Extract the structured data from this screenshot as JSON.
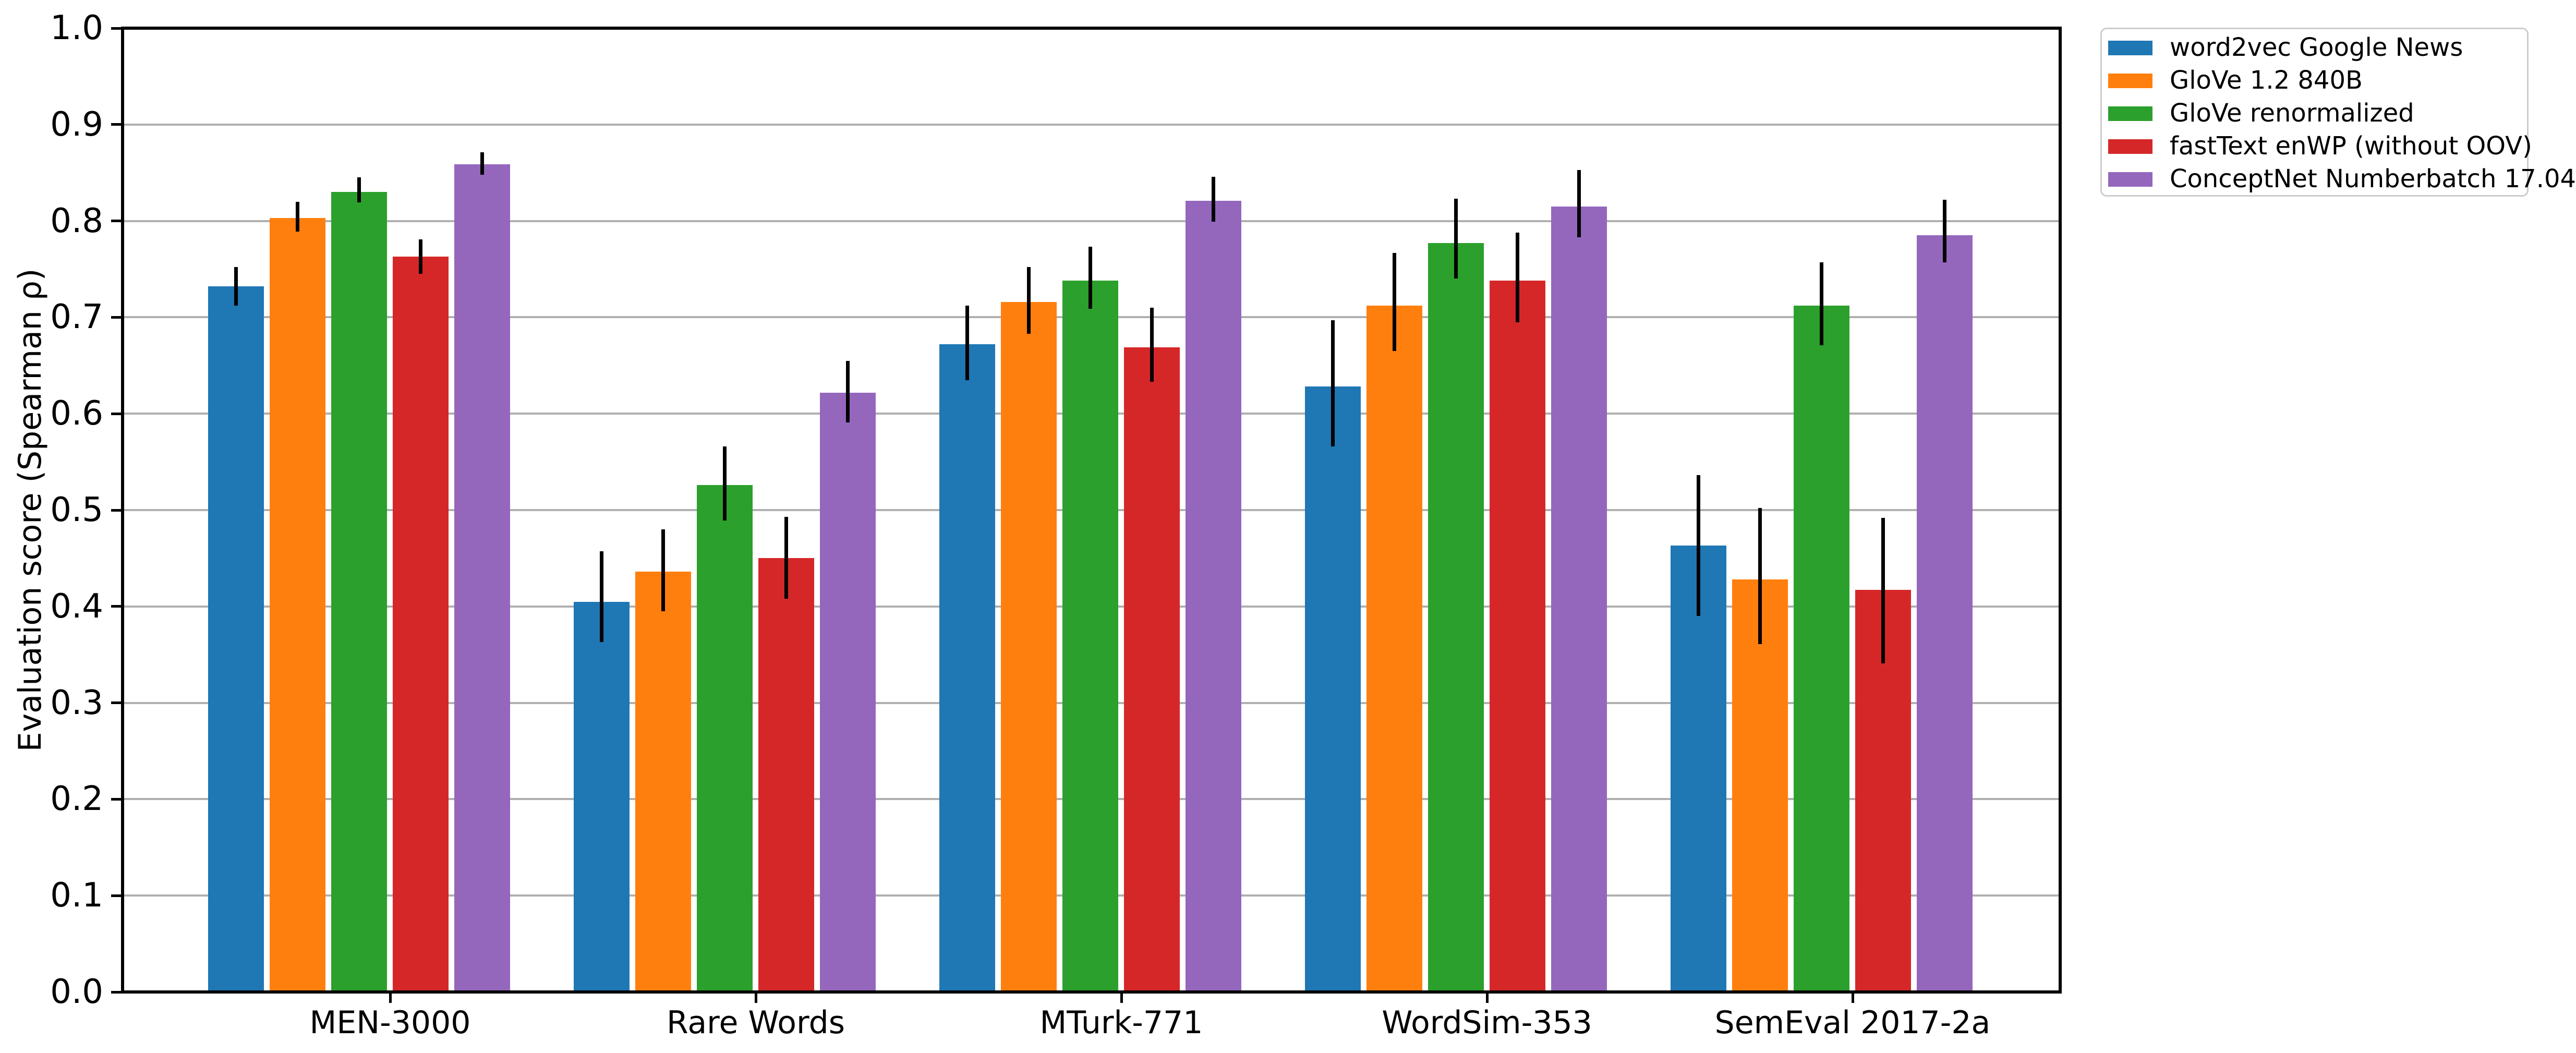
{
  "colors": {
    "background": "#ffffff",
    "gridline": "#b0b0b0",
    "spine": "#000000",
    "errorbar": "#000000",
    "legend_border": "#cccccc",
    "text": "#000000"
  },
  "y_axis": {
    "label": "Evaluation score (Spearman ρ)",
    "tick_labels": [
      "0.0",
      "0.1",
      "0.2",
      "0.3",
      "0.4",
      "0.5",
      "0.6",
      "0.7",
      "0.8",
      "0.9",
      "1.0"
    ]
  },
  "chart_data": {
    "type": "bar",
    "title": "",
    "xlabel": "",
    "ylabel": "Evaluation score (Spearman ρ)",
    "ylim": [
      0.0,
      1.0
    ],
    "ytick_step": 0.1,
    "grid": true,
    "legend_position": "upper right, outside plot",
    "categories": [
      "MEN-3000",
      "Rare Words",
      "MTurk-771",
      "WordSim-353",
      "SemEval 2017-2a"
    ],
    "series": [
      {
        "name": "word2vec Google News",
        "color": "#1f77b4",
        "values": [
          0.732,
          0.405,
          0.672,
          0.628,
          0.463
        ],
        "error_low": [
          0.712,
          0.363,
          0.635,
          0.566,
          0.39
        ],
        "error_high": [
          0.752,
          0.457,
          0.712,
          0.697,
          0.536
        ]
      },
      {
        "name": "GloVe 1.2 840B",
        "color": "#ff7f0e",
        "values": [
          0.803,
          0.436,
          0.716,
          0.712,
          0.428
        ],
        "error_low": [
          0.789,
          0.395,
          0.683,
          0.665,
          0.361
        ],
        "error_high": [
          0.82,
          0.48,
          0.752,
          0.767,
          0.502
        ]
      },
      {
        "name": "GloVe renormalized",
        "color": "#2ca02c",
        "values": [
          0.83,
          0.526,
          0.738,
          0.777,
          0.712
        ],
        "error_low": [
          0.819,
          0.489,
          0.709,
          0.74,
          0.671
        ],
        "error_high": [
          0.845,
          0.566,
          0.773,
          0.823,
          0.757
        ]
      },
      {
        "name": "fastText enWP (without OOV)",
        "color": "#d62728",
        "values": [
          0.763,
          0.45,
          0.669,
          0.738,
          0.417
        ],
        "error_low": [
          0.745,
          0.408,
          0.633,
          0.695,
          0.341
        ],
        "error_high": [
          0.781,
          0.493,
          0.71,
          0.788,
          0.492
        ]
      },
      {
        "name": "ConceptNet Numberbatch 17.04",
        "color": "#9467bd",
        "values": [
          0.859,
          0.622,
          0.821,
          0.815,
          0.785
        ],
        "error_low": [
          0.848,
          0.591,
          0.799,
          0.783,
          0.757
        ],
        "error_high": [
          0.871,
          0.655,
          0.846,
          0.853,
          0.822
        ]
      }
    ]
  }
}
